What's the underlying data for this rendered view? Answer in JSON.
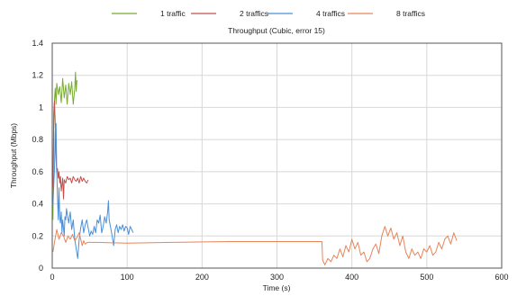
{
  "chart_data": {
    "type": "line",
    "title": "Throughput (Cubic, error 15)",
    "xlabel": "Time (s)",
    "ylabel": "Throughput (Mbps)",
    "xlim": [
      0,
      600
    ],
    "ylim": [
      0,
      1.4
    ],
    "xticks": [
      0,
      100,
      200,
      300,
      400,
      500,
      600
    ],
    "yticks": [
      0,
      0.2,
      0.4,
      0.6,
      0.8,
      1,
      1.2,
      1.4
    ],
    "grid": true,
    "legend_position": "top",
    "series": [
      {
        "name": "1 traffic",
        "color": "#77ac30",
        "points": [
          [
            1,
            0.3
          ],
          [
            2,
            0.9
          ],
          [
            3,
            1.05
          ],
          [
            4,
            1.12
          ],
          [
            5,
            1.02
          ],
          [
            6,
            1.15
          ],
          [
            8,
            1.08
          ],
          [
            10,
            1.13
          ],
          [
            12,
            1.03
          ],
          [
            14,
            1.18
          ],
          [
            16,
            1.06
          ],
          [
            18,
            1.14
          ],
          [
            20,
            1.02
          ],
          [
            22,
            1.15
          ],
          [
            24,
            1.08
          ],
          [
            26,
            1.16
          ],
          [
            28,
            1.02
          ],
          [
            30,
            1.12
          ],
          [
            31,
            1.22
          ],
          [
            32,
            1.1
          ],
          [
            33,
            1.17
          ]
        ]
      },
      {
        "name": "2 traffics",
        "color": "#c0504d",
        "points": [
          [
            1,
            0.5
          ],
          [
            2,
            0.97
          ],
          [
            3,
            1.04
          ],
          [
            4,
            0.9
          ],
          [
            5,
            0.68
          ],
          [
            6,
            0.6
          ],
          [
            7,
            0.62
          ],
          [
            8,
            0.56
          ],
          [
            9,
            0.6
          ],
          [
            10,
            0.53
          ],
          [
            11,
            0.57
          ],
          [
            12,
            0.48
          ],
          [
            14,
            0.56
          ],
          [
            15,
            0.43
          ],
          [
            16,
            0.55
          ],
          [
            18,
            0.53
          ],
          [
            20,
            0.57
          ],
          [
            22,
            0.55
          ],
          [
            24,
            0.56
          ],
          [
            26,
            0.53
          ],
          [
            28,
            0.57
          ],
          [
            30,
            0.55
          ],
          [
            32,
            0.54
          ],
          [
            34,
            0.56
          ],
          [
            36,
            0.53
          ],
          [
            38,
            0.57
          ],
          [
            40,
            0.54
          ],
          [
            42,
            0.56
          ],
          [
            44,
            0.54
          ],
          [
            46,
            0.53
          ],
          [
            48,
            0.55
          ]
        ]
      },
      {
        "name": "4 traffics",
        "color": "#4a90d9",
        "points": [
          [
            1,
            0.4
          ],
          [
            3,
            0.62
          ],
          [
            4,
            0.85
          ],
          [
            5,
            0.9
          ],
          [
            6,
            0.6
          ],
          [
            7,
            0.45
          ],
          [
            8,
            0.3
          ],
          [
            9,
            0.5
          ],
          [
            10,
            0.32
          ],
          [
            11,
            0.28
          ],
          [
            12,
            0.35
          ],
          [
            13,
            0.22
          ],
          [
            14,
            0.3
          ],
          [
            15,
            0.25
          ],
          [
            16,
            0.2
          ],
          [
            17,
            0.32
          ],
          [
            18,
            0.3
          ],
          [
            19,
            0.37
          ],
          [
            20,
            0.34
          ],
          [
            22,
            0.28
          ],
          [
            24,
            0.35
          ],
          [
            26,
            0.24
          ],
          [
            28,
            0.3
          ],
          [
            30,
            0.18
          ],
          [
            32,
            0.12
          ],
          [
            34,
            0.06
          ],
          [
            35,
            0.12
          ],
          [
            36,
            0.18
          ],
          [
            38,
            0.25
          ],
          [
            40,
            0.3
          ],
          [
            42,
            0.22
          ],
          [
            44,
            0.27
          ],
          [
            46,
            0.3
          ],
          [
            48,
            0.25
          ],
          [
            50,
            0.2
          ],
          [
            52,
            0.23
          ],
          [
            54,
            0.21
          ],
          [
            56,
            0.26
          ],
          [
            58,
            0.22
          ],
          [
            60,
            0.3
          ],
          [
            62,
            0.28
          ],
          [
            64,
            0.33
          ],
          [
            66,
            0.22
          ],
          [
            68,
            0.26
          ],
          [
            70,
            0.32
          ],
          [
            72,
            0.28
          ],
          [
            74,
            0.35
          ],
          [
            75,
            0.42
          ],
          [
            76,
            0.3
          ],
          [
            78,
            0.25
          ],
          [
            80,
            0.2
          ],
          [
            82,
            0.14
          ],
          [
            84,
            0.24
          ],
          [
            86,
            0.27
          ],
          [
            88,
            0.22
          ],
          [
            90,
            0.26
          ],
          [
            92,
            0.24
          ],
          [
            94,
            0.27
          ],
          [
            96,
            0.23
          ],
          [
            98,
            0.26
          ],
          [
            100,
            0.25
          ],
          [
            102,
            0.21
          ],
          [
            104,
            0.26
          ],
          [
            106,
            0.24
          ],
          [
            108,
            0.22
          ]
        ]
      },
      {
        "name": "8 traffics",
        "color": "#e8845a",
        "points": [
          [
            1,
            0.1
          ],
          [
            3,
            0.16
          ],
          [
            6,
            0.24
          ],
          [
            9,
            0.18
          ],
          [
            12,
            0.22
          ],
          [
            15,
            0.2
          ],
          [
            18,
            0.16
          ],
          [
            21,
            0.2
          ],
          [
            24,
            0.18
          ],
          [
            27,
            0.21
          ],
          [
            30,
            0.17
          ],
          [
            33,
            0.19
          ],
          [
            36,
            0.22
          ],
          [
            38,
            0.18
          ],
          [
            40,
            0.14
          ],
          [
            42,
            0.17
          ],
          [
            44,
            0.15
          ],
          [
            47,
            0.16
          ],
          [
            60,
            0.16
          ],
          [
            100,
            0.155
          ],
          [
            160,
            0.16
          ],
          [
            240,
            0.165
          ],
          [
            300,
            0.165
          ],
          [
            340,
            0.165
          ],
          [
            360,
            0.165
          ],
          [
            361,
            0.05
          ],
          [
            364,
            0.02
          ],
          [
            368,
            0.06
          ],
          [
            372,
            0.04
          ],
          [
            376,
            0.08
          ],
          [
            380,
            0.06
          ],
          [
            384,
            0.12
          ],
          [
            388,
            0.07
          ],
          [
            392,
            0.14
          ],
          [
            396,
            0.1
          ],
          [
            400,
            0.18
          ],
          [
            404,
            0.12
          ],
          [
            408,
            0.16
          ],
          [
            412,
            0.08
          ],
          [
            416,
            0.1
          ],
          [
            420,
            0.04
          ],
          [
            424,
            0.06
          ],
          [
            428,
            0.12
          ],
          [
            432,
            0.15
          ],
          [
            436,
            0.09
          ],
          [
            440,
            0.2
          ],
          [
            444,
            0.26
          ],
          [
            448,
            0.2
          ],
          [
            452,
            0.25
          ],
          [
            456,
            0.18
          ],
          [
            460,
            0.22
          ],
          [
            464,
            0.14
          ],
          [
            468,
            0.2
          ],
          [
            472,
            0.1
          ],
          [
            476,
            0.06
          ],
          [
            480,
            0.12
          ],
          [
            484,
            0.08
          ],
          [
            488,
            0.1
          ],
          [
            492,
            0.06
          ],
          [
            496,
            0.12
          ],
          [
            500,
            0.1
          ],
          [
            504,
            0.14
          ],
          [
            508,
            0.08
          ],
          [
            512,
            0.1
          ],
          [
            516,
            0.16
          ],
          [
            520,
            0.12
          ],
          [
            524,
            0.18
          ],
          [
            528,
            0.2
          ],
          [
            532,
            0.15
          ],
          [
            536,
            0.22
          ],
          [
            540,
            0.17
          ]
        ]
      }
    ]
  }
}
